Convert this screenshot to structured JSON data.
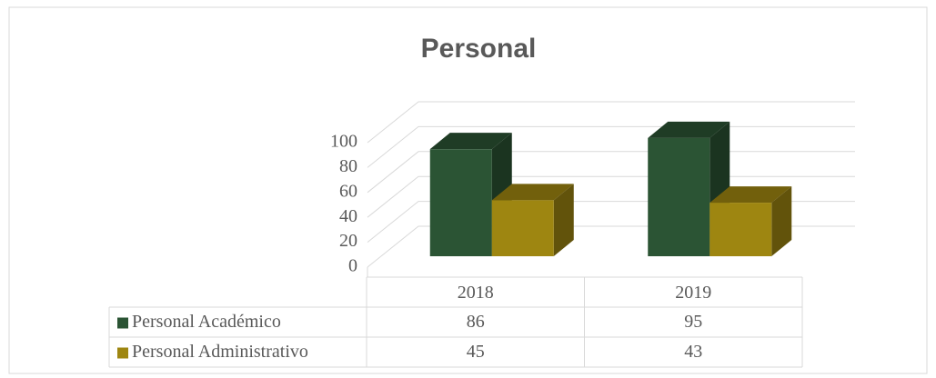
{
  "chart_data": {
    "type": "bar3d",
    "title": "Personal",
    "categories": [
      "2018",
      "2019"
    ],
    "series": [
      {
        "name": "Personal Académico",
        "color": "#2b5434",
        "values": [
          86,
          95
        ]
      },
      {
        "name": "Personal Administrativo",
        "color": "#9e8611",
        "values": [
          45,
          43
        ]
      }
    ],
    "ylim": [
      0,
      100
    ],
    "yticks": [
      0,
      20,
      40,
      60,
      80,
      100
    ],
    "grid": true,
    "legend": "table"
  }
}
